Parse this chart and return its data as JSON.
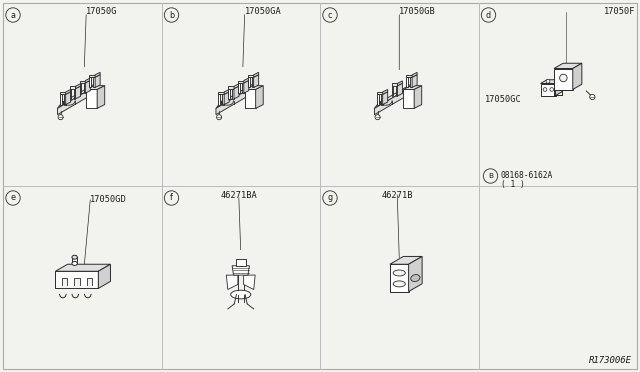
{
  "bg_color": "#f2f2ee",
  "border_color": "#aaaaaa",
  "grid_color": "#bbbbbb",
  "line_color": "#2a2a2a",
  "text_color": "#1a1a1a",
  "ref_code": "R173006E",
  "panels": [
    {
      "id": "a",
      "col": 0,
      "row": 0,
      "part": "17050G",
      "type": "clamp4"
    },
    {
      "id": "b",
      "col": 1,
      "row": 0,
      "part": "17050GA",
      "type": "clamp4"
    },
    {
      "id": "c",
      "col": 2,
      "row": 0,
      "part": "17050GB",
      "type": "clamp3"
    },
    {
      "id": "d",
      "col": 3,
      "row": 0,
      "part": "17050F",
      "type": "bracket",
      "extra_part": "17050GC",
      "screw_part": "08168-6162A",
      "screw_qty": "( 1 )"
    },
    {
      "id": "e",
      "col": 0,
      "row": 1,
      "part": "17050GD",
      "type": "longclamp"
    },
    {
      "id": "f",
      "col": 1,
      "row": 1,
      "part": "46271BA",
      "type": "springclip"
    },
    {
      "id": "g",
      "col": 2,
      "row": 1,
      "part": "46271B",
      "type": "blockclip"
    }
  ],
  "font_size": 6.2,
  "font_size_id": 5.8,
  "font_size_ref": 6.5
}
